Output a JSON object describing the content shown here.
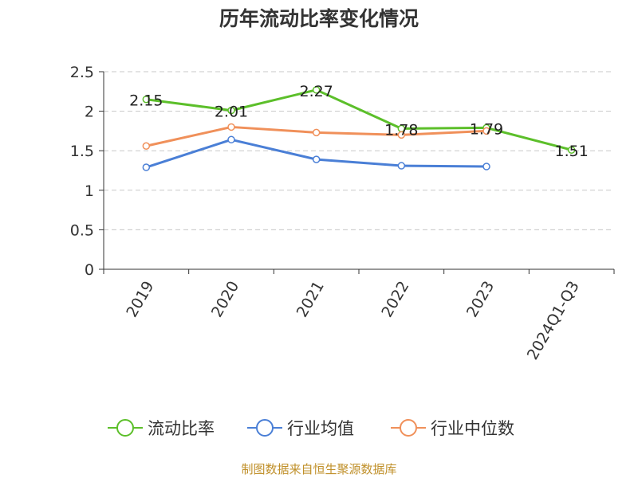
{
  "title": "历年流动比率变化情况",
  "source": "制图数据来自恒生聚源数据库",
  "chart_data": {
    "type": "line",
    "title": "历年流动比率变化情况",
    "categories": [
      "2019",
      "2020",
      "2021",
      "2022",
      "2023",
      "2024Q1-Q3"
    ],
    "ylim": [
      0,
      2.5
    ],
    "yticks": [
      "0",
      "0.5",
      "1",
      "1.5",
      "2",
      "2.5"
    ],
    "grid": true,
    "legend_position": "bottom",
    "series": [
      {
        "name": "流动比率",
        "color": "#5cbf2a",
        "values": [
          2.15,
          2.01,
          2.27,
          1.78,
          1.79,
          1.51
        ],
        "labels": [
          "2.15",
          "2.01",
          "2.27",
          "1.78",
          "1.79",
          "1.51"
        ]
      },
      {
        "name": "行业均值",
        "color": "#4a7fd6",
        "values": [
          1.29,
          1.64,
          1.39,
          1.31,
          1.3,
          null
        ]
      },
      {
        "name": "行业中位数",
        "color": "#f0905a",
        "values": [
          1.56,
          1.8,
          1.73,
          1.7,
          1.75,
          null
        ]
      }
    ]
  }
}
